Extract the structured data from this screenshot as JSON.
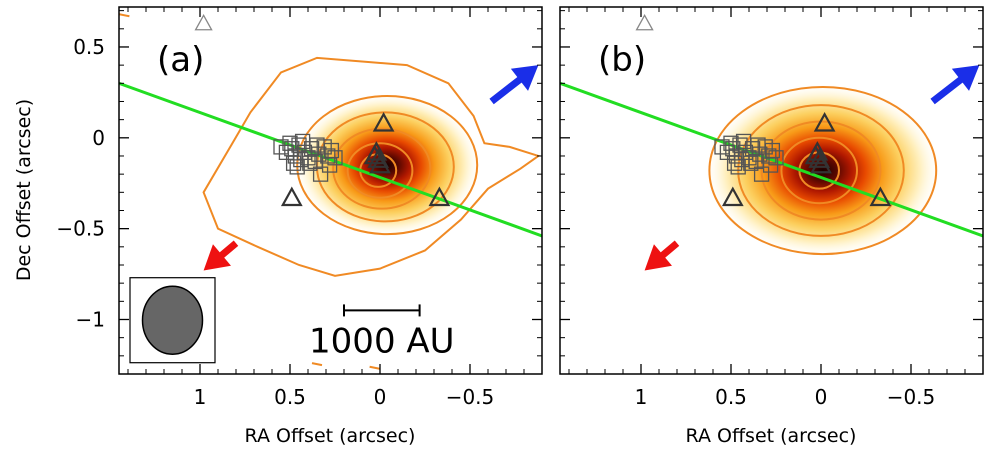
{
  "chart_data": {
    "type": "contour",
    "ylabel": "Dec Offset (arcsec)",
    "xlabel": "RA Offset (arcsec)",
    "xlim": [
      1.45,
      -0.9
    ],
    "ylim": [
      -1.3,
      0.72
    ],
    "xticks": [
      1,
      0.5,
      0,
      -0.5
    ],
    "xtick_labels": [
      "1",
      "0.5",
      "0",
      "−0.5"
    ],
    "yticks": [
      0.5,
      0,
      -0.5,
      -1
    ],
    "ytick_labels": [
      "0.5",
      "0",
      "−0.5",
      "−1"
    ],
    "center": [
      0.02,
      -0.18
    ],
    "line": {
      "x": [
        1.45,
        -0.9
      ],
      "y": [
        0.3,
        -0.54
      ],
      "color": "#22dd22"
    },
    "scale_bar": {
      "x": [
        0.2,
        -0.22
      ],
      "y": -0.95,
      "label": "1000 AU"
    },
    "beam": {
      "x": 1.0,
      "y": -1.0,
      "rx": 0.16,
      "ry": 0.19
    },
    "panels": [
      {
        "label": "(a)",
        "contour_levels": [
          {
            "rx": 0.5,
            "ry": 0.38,
            "dx": 0.06,
            "dy": 0.03
          },
          {
            "rx": 0.38,
            "ry": 0.3,
            "dx": 0.05,
            "dy": 0.02
          },
          {
            "rx": 0.27,
            "ry": 0.22,
            "dx": 0.03,
            "dy": 0.01
          },
          {
            "rx": 0.18,
            "ry": 0.15,
            "dx": 0.02,
            "dy": 0.0
          },
          {
            "rx": 0.1,
            "ry": 0.09,
            "dx": 0.01,
            "dy": 0.0
          }
        ],
        "outer_contour": {
          "x": [
            0.98,
            0.82,
            0.72,
            0.55,
            0.35,
            0.1,
            -0.15,
            -0.38,
            -0.52,
            -0.58,
            -0.72,
            -0.88,
            -0.78,
            -0.6,
            -0.45,
            -0.25,
            0.0,
            0.25,
            0.45,
            0.68,
            0.9,
            0.98
          ],
          "y": [
            -0.3,
            -0.03,
            0.14,
            0.36,
            0.44,
            0.42,
            0.4,
            0.3,
            0.12,
            -0.03,
            -0.05,
            -0.1,
            -0.17,
            -0.28,
            -0.45,
            -0.62,
            -0.72,
            -0.76,
            -0.7,
            -0.6,
            -0.5,
            -0.3
          ]
        },
        "arrows": [
          {
            "color": "#1a2ee8",
            "from": [
              -0.62,
              0.2
            ],
            "to": [
              -0.88,
              0.4
            ]
          },
          {
            "color": "#ee1111",
            "from": [
              0.8,
              -0.58
            ],
            "to": [
              0.98,
              -0.73
            ]
          }
        ],
        "squares": [
          [
            0.55,
            -0.05
          ],
          [
            0.52,
            -0.08
          ],
          [
            0.49,
            -0.06
          ],
          [
            0.47,
            -0.1
          ],
          [
            0.45,
            -0.04
          ],
          [
            0.44,
            -0.12
          ],
          [
            0.42,
            -0.08
          ],
          [
            0.4,
            -0.11
          ],
          [
            0.38,
            -0.06
          ],
          [
            0.36,
            -0.13
          ],
          [
            0.34,
            -0.09
          ],
          [
            0.33,
            -0.2
          ],
          [
            0.31,
            -0.05
          ],
          [
            0.29,
            -0.1
          ],
          [
            0.27,
            -0.07
          ],
          [
            0.25,
            -0.11
          ],
          [
            0.5,
            -0.03
          ],
          [
            0.48,
            -0.14
          ],
          [
            0.43,
            -0.02
          ],
          [
            0.35,
            -0.04
          ],
          [
            0.46,
            -0.16
          ],
          [
            0.28,
            -0.15
          ],
          [
            0.39,
            -0.14
          ]
        ],
        "triangles": [
          [
            -0.02,
            0.08
          ],
          [
            0.49,
            -0.33
          ],
          [
            -0.33,
            -0.33
          ],
          [
            0.02,
            -0.08
          ],
          [
            0.01,
            -0.12
          ],
          [
            0.0,
            -0.15
          ],
          [
            0.03,
            -0.1
          ],
          [
            0.98,
            0.63
          ]
        ],
        "has_beam": true,
        "has_scale_bar": true,
        "stray_marks": [
          [
            1.42,
            0.68
          ],
          [
            0.35,
            -1.24
          ],
          [
            0.03,
            -1.26
          ]
        ]
      },
      {
        "label": "(b)",
        "contour_levels": [
          {
            "rx": 0.63,
            "ry": 0.46,
            "dx": 0.03,
            "dy": 0.0
          },
          {
            "rx": 0.46,
            "ry": 0.36,
            "dx": 0.02,
            "dy": 0.0
          },
          {
            "rx": 0.33,
            "ry": 0.27,
            "dx": 0.02,
            "dy": 0.0
          },
          {
            "rx": 0.21,
            "ry": 0.18,
            "dx": 0.01,
            "dy": 0.0
          },
          {
            "rx": 0.11,
            "ry": 0.1,
            "dx": 0.01,
            "dy": 0.0
          }
        ],
        "arrows": [
          {
            "color": "#1a2ee8",
            "from": [
              -0.62,
              0.2
            ],
            "to": [
              -0.88,
              0.4
            ]
          },
          {
            "color": "#ee1111",
            "from": [
              0.8,
              -0.58
            ],
            "to": [
              0.98,
              -0.73
            ]
          }
        ],
        "squares": [
          [
            0.55,
            -0.05
          ],
          [
            0.52,
            -0.08
          ],
          [
            0.49,
            -0.06
          ],
          [
            0.47,
            -0.1
          ],
          [
            0.45,
            -0.04
          ],
          [
            0.44,
            -0.12
          ],
          [
            0.42,
            -0.08
          ],
          [
            0.4,
            -0.11
          ],
          [
            0.38,
            -0.06
          ],
          [
            0.36,
            -0.13
          ],
          [
            0.34,
            -0.09
          ],
          [
            0.33,
            -0.2
          ],
          [
            0.31,
            -0.05
          ],
          [
            0.29,
            -0.1
          ],
          [
            0.27,
            -0.07
          ],
          [
            0.25,
            -0.11
          ],
          [
            0.5,
            -0.03
          ],
          [
            0.48,
            -0.14
          ],
          [
            0.43,
            -0.02
          ],
          [
            0.35,
            -0.04
          ],
          [
            0.46,
            -0.16
          ],
          [
            0.28,
            -0.15
          ],
          [
            0.39,
            -0.14
          ]
        ],
        "triangles": [
          [
            -0.02,
            0.08
          ],
          [
            0.49,
            -0.33
          ],
          [
            -0.33,
            -0.33
          ],
          [
            0.02,
            -0.08
          ],
          [
            0.01,
            -0.12
          ],
          [
            0.0,
            -0.15
          ],
          [
            0.03,
            -0.1
          ],
          [
            0.98,
            0.63
          ]
        ],
        "has_beam": false,
        "has_scale_bar": false,
        "stray_marks": []
      }
    ]
  }
}
